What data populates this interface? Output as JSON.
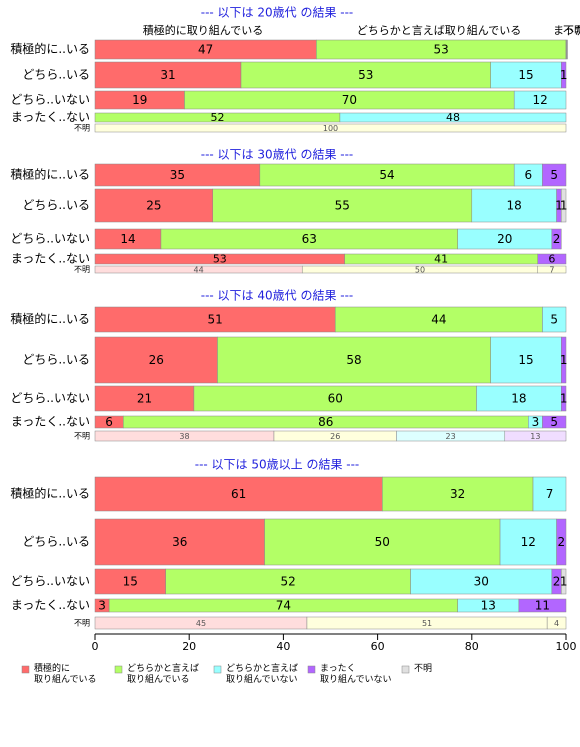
{
  "chart_data": {
    "type": "bar",
    "orientation": "horizontal",
    "stacked": "percent",
    "xlim": [
      0,
      100
    ],
    "x_ticks": [
      "0",
      "20",
      "40",
      "60",
      "80",
      "100"
    ],
    "colors": [
      "#FF6B6B",
      "#B3FF66",
      "#99FFFF",
      "#B266FF",
      "#E0E0E0"
    ],
    "top_labels": [
      "積極的に取り組んでいる",
      "どちらかと言えば取り組んでいる",
      "まった",
      "不明"
    ],
    "legend": {
      "position": "bottom",
      "entries": [
        {
          "label": "積極的に\n取り組んでいる",
          "color": "#FF6B6B"
        },
        {
          "label": "どちらかと言えば\n取り組んでいる",
          "color": "#B3FF66"
        },
        {
          "label": "どちらかと言えば\n取り組んでいない",
          "color": "#99FFFF"
        },
        {
          "label": "まったく\n取り組んでいない",
          "color": "#B266FF"
        },
        {
          "label": "不明",
          "color": "#E0E0E0"
        }
      ]
    },
    "panels": [
      {
        "title": "--- 以下は 20歳代 の結果 ---",
        "rows": [
          {
            "label": "積極的に..いる",
            "values": [
              47,
              53,
              0.2,
              0.2,
              0
            ],
            "labels": [
              "47",
              "53",
              "",
              "",
              ""
            ]
          },
          {
            "label": "どちら..いる",
            "values": [
              31,
              53,
              15,
              1,
              0
            ],
            "labels": [
              "31",
              "53",
              "15",
              "1",
              ""
            ]
          },
          {
            "label": "どちら..いない",
            "values": [
              19,
              70,
              12,
              0,
              0
            ],
            "labels": [
              "19",
              "70",
              "12",
              "",
              ""
            ]
          },
          {
            "label": "まったく..ない",
            "values": [
              0,
              52,
              48,
              0,
              0
            ],
            "labels": [
              "",
              "52",
              "48",
              "",
              ""
            ]
          },
          {
            "label": "不明",
            "values": [
              0,
              0,
              0,
              0,
              100
            ],
            "labels": [
              "",
              "",
              "",
              "",
              "100"
            ]
          }
        ]
      },
      {
        "title": "--- 以下は 30歳代 の結果 ---",
        "rows": [
          {
            "label": "積極的に..いる",
            "values": [
              35,
              54,
              6,
              5,
              0
            ],
            "labels": [
              "35",
              "54",
              "6",
              "5",
              ""
            ]
          },
          {
            "label": "どちら..いる",
            "values": [
              25,
              55,
              18,
              1,
              1
            ],
            "labels": [
              "25",
              "55",
              "18",
              "1",
              "1"
            ]
          },
          {
            "label": "どちら..いない",
            "values": [
              14,
              63,
              20,
              2,
              0
            ],
            "labels": [
              "14",
              "63",
              "20",
              "2",
              ""
            ]
          },
          {
            "label": "まったく..ない",
            "values": [
              53,
              41,
              0,
              6,
              0
            ],
            "labels": [
              "53",
              "41",
              "",
              "6",
              ""
            ]
          },
          {
            "label": "不明",
            "values": [
              44,
              50,
              0,
              0,
              7
            ],
            "labels": [
              "44",
              "50",
              "",
              "",
              "7"
            ]
          }
        ]
      },
      {
        "title": "--- 以下は 40歳代 の結果 ---",
        "rows": [
          {
            "label": "積極的に..いる",
            "values": [
              51,
              44,
              5,
              0,
              0
            ],
            "labels": [
              "51",
              "44",
              "5",
              "",
              ""
            ]
          },
          {
            "label": "どちら..いる",
            "values": [
              26,
              58,
              15,
              1,
              0
            ],
            "labels": [
              "26",
              "58",
              "15",
              "1",
              ""
            ]
          },
          {
            "label": "どちら..いない",
            "values": [
              21,
              60,
              18,
              1,
              0
            ],
            "labels": [
              "21",
              "60",
              "18",
              "1",
              ""
            ]
          },
          {
            "label": "まったく..ない",
            "values": [
              6,
              86,
              3,
              5,
              0
            ],
            "labels": [
              "6",
              "86",
              "3",
              "5",
              ""
            ]
          },
          {
            "label": "不明",
            "values": [
              38,
              26,
              23,
              13,
              0
            ],
            "labels": [
              "38",
              "26",
              "23",
              "13",
              ""
            ]
          }
        ]
      },
      {
        "title": "--- 以下は 50歳以上 の結果 ---",
        "rows": [
          {
            "label": "積極的に..いる",
            "values": [
              61,
              32,
              7,
              0,
              0
            ],
            "labels": [
              "61",
              "32",
              "7",
              "",
              ""
            ]
          },
          {
            "label": "どちら..いる",
            "values": [
              36,
              50,
              12,
              2,
              0
            ],
            "labels": [
              "36",
              "50",
              "12",
              "2",
              ""
            ]
          },
          {
            "label": "どちら..いない",
            "values": [
              15,
              52,
              30,
              2,
              1
            ],
            "labels": [
              "15",
              "52",
              "30",
              "2",
              "1"
            ]
          },
          {
            "label": "まったく..ない",
            "values": [
              3,
              74,
              13,
              11,
              0
            ],
            "labels": [
              "3",
              "74",
              "13",
              "11",
              ""
            ]
          },
          {
            "label": "不明",
            "values": [
              45,
              51,
              0,
              0,
              4
            ],
            "labels": [
              "45",
              "51",
              "",
              "",
              "4"
            ]
          }
        ]
      }
    ]
  }
}
